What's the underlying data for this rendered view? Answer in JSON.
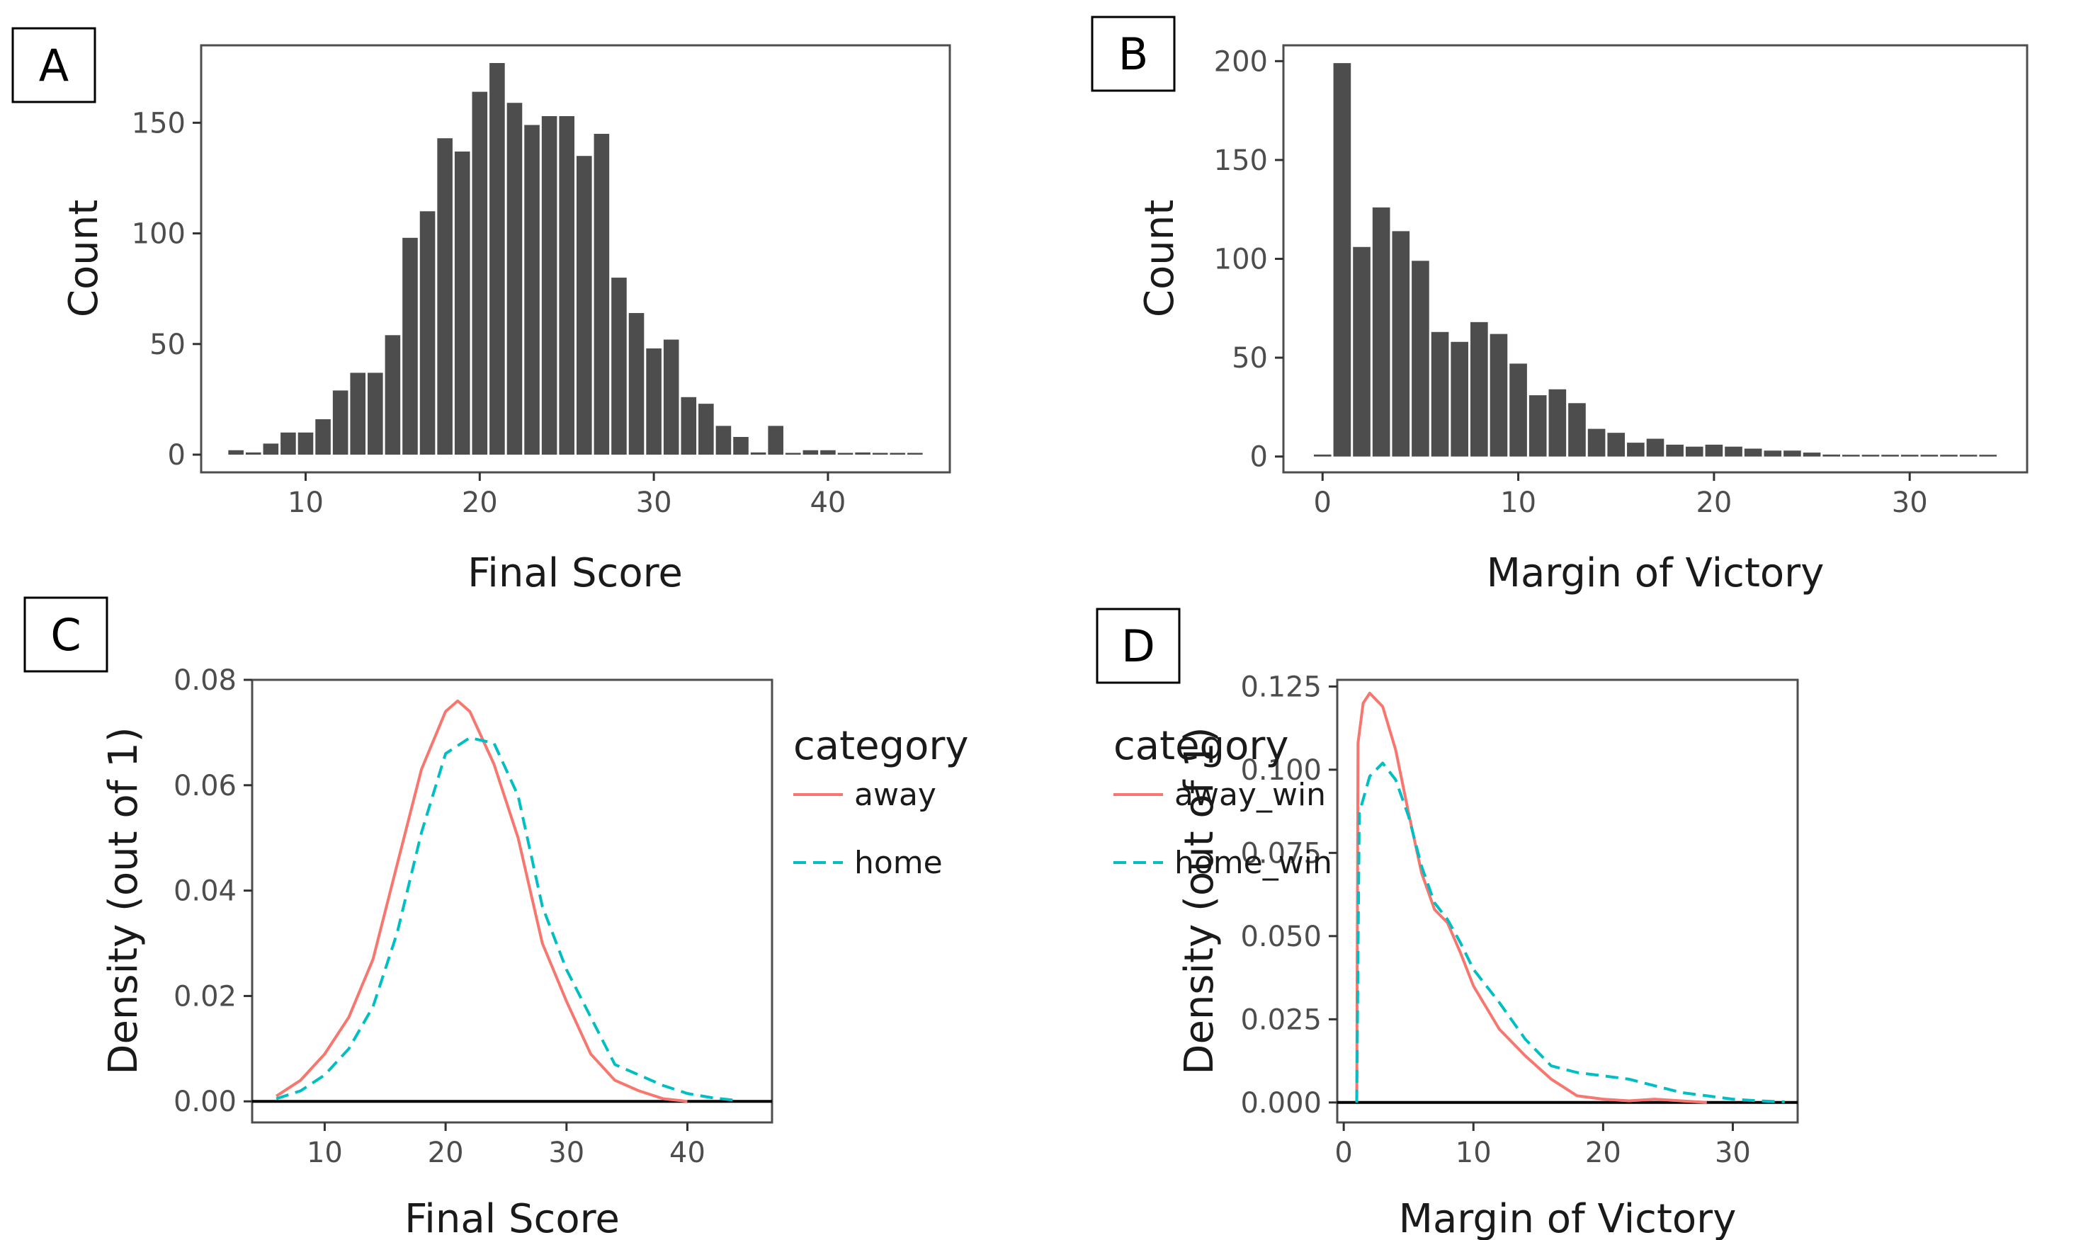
{
  "panels": [
    {
      "letter": "A"
    },
    {
      "letter": "B"
    },
    {
      "letter": "C"
    },
    {
      "letter": "D"
    }
  ],
  "colors": {
    "bar": "#4d4d4d",
    "away": "#f8766d",
    "home": "#00bfc4",
    "zero_line": "#000000"
  },
  "chart_data": [
    {
      "type": "bar",
      "panel": "A",
      "xlabel": "Final Score",
      "ylabel": "Count",
      "xlim": [
        4,
        47
      ],
      "ylim": [
        -8,
        185
      ],
      "xticks": [
        10,
        20,
        30,
        40
      ],
      "yticks": [
        0,
        50,
        100,
        150
      ],
      "x": [
        6,
        7,
        8,
        9,
        10,
        11,
        12,
        13,
        14,
        15,
        16,
        17,
        18,
        19,
        20,
        21,
        22,
        23,
        24,
        25,
        26,
        27,
        28,
        29,
        30,
        31,
        32,
        33,
        34,
        35,
        36,
        37,
        38,
        39,
        40,
        41,
        42,
        43,
        44,
        45
      ],
      "values": [
        2,
        1,
        5,
        10,
        10,
        16,
        29,
        37,
        37,
        54,
        98,
        110,
        143,
        137,
        164,
        177,
        159,
        149,
        153,
        153,
        135,
        145,
        80,
        64,
        48,
        52,
        26,
        23,
        13,
        8,
        1,
        13,
        0,
        2,
        2,
        0,
        1,
        0,
        0,
        0
      ]
    },
    {
      "type": "bar",
      "panel": "B",
      "xlabel": "Margin of Victory",
      "ylabel": "Count",
      "xlim": [
        -2,
        36
      ],
      "ylim": [
        -8,
        208
      ],
      "xticks": [
        0,
        10,
        20,
        30
      ],
      "yticks": [
        0,
        50,
        100,
        150,
        200
      ],
      "x": [
        0,
        1,
        2,
        3,
        4,
        5,
        6,
        7,
        8,
        9,
        10,
        11,
        12,
        13,
        14,
        15,
        16,
        17,
        18,
        19,
        20,
        21,
        22,
        23,
        24,
        25,
        26,
        27,
        28,
        29,
        30,
        31,
        32,
        33,
        34
      ],
      "values": [
        1,
        199,
        106,
        126,
        114,
        99,
        63,
        58,
        68,
        62,
        47,
        31,
        34,
        27,
        14,
        12,
        7,
        9,
        6,
        5,
        6,
        5,
        4,
        3,
        3,
        2,
        1,
        0,
        0,
        0,
        0,
        0,
        0,
        0,
        0
      ]
    },
    {
      "type": "line",
      "panel": "C",
      "xlabel": "Final Score",
      "ylabel": "Density (out of 1)",
      "xlim": [
        4,
        47
      ],
      "ylim": [
        -0.004,
        0.08
      ],
      "xticks": [
        10,
        20,
        30,
        40
      ],
      "yticks": [
        0,
        0.02,
        0.04,
        0.06,
        0.08
      ],
      "ytick_labels": [
        "0.00",
        "0.02",
        "0.04",
        "0.06",
        "0.08"
      ],
      "legend_title": "category",
      "legend_position": "right",
      "series": [
        {
          "name": "away",
          "style": "solid",
          "x": [
            6,
            8,
            10,
            12,
            14,
            16,
            18,
            20,
            21,
            22,
            24,
            26,
            28,
            30,
            32,
            34,
            36,
            38,
            40
          ],
          "y": [
            0.001,
            0.004,
            0.009,
            0.016,
            0.027,
            0.045,
            0.063,
            0.074,
            0.076,
            0.074,
            0.064,
            0.05,
            0.03,
            0.019,
            0.009,
            0.004,
            0.002,
            0.0005,
            0.0
          ]
        },
        {
          "name": "home",
          "style": "dashed",
          "x": [
            6,
            8,
            10,
            12,
            14,
            16,
            18,
            20,
            22,
            24,
            26,
            28,
            30,
            32,
            34,
            36,
            38,
            40,
            42,
            44
          ],
          "y": [
            0.0005,
            0.002,
            0.005,
            0.01,
            0.018,
            0.032,
            0.051,
            0.066,
            0.069,
            0.068,
            0.058,
            0.037,
            0.025,
            0.016,
            0.007,
            0.005,
            0.003,
            0.0015,
            0.0007,
            0.0002
          ]
        }
      ]
    },
    {
      "type": "line",
      "panel": "D",
      "xlabel": "Margin of Victory",
      "ylabel": "Density (out of 1)",
      "xlim": [
        -0.5,
        35
      ],
      "ylim": [
        -0.006,
        0.127
      ],
      "xticks": [
        0,
        10,
        20,
        30
      ],
      "yticks": [
        0,
        0.025,
        0.05,
        0.075,
        0.1,
        0.125
      ],
      "ytick_labels": [
        "0.000",
        "0.025",
        "0.050",
        "0.075",
        "0.100",
        "0.125"
      ],
      "legend_title": "category",
      "legend_position": "right",
      "series": [
        {
          "name": "away_win",
          "style": "solid",
          "x": [
            1,
            1.1,
            1.5,
            2,
            3,
            4,
            5,
            6,
            7,
            8,
            9,
            10,
            12,
            14,
            16,
            18,
            20,
            22,
            24,
            26,
            28
          ],
          "y": [
            0.0,
            0.108,
            0.12,
            0.123,
            0.119,
            0.106,
            0.087,
            0.069,
            0.058,
            0.054,
            0.045,
            0.035,
            0.022,
            0.014,
            0.007,
            0.002,
            0.001,
            0.0005,
            0.001,
            0.0005,
            0.0
          ]
        },
        {
          "name": "home_win",
          "style": "dashed",
          "x": [
            1,
            1.2,
            2,
            3,
            4,
            5,
            6,
            7,
            8,
            9,
            10,
            12,
            14,
            16,
            18,
            20,
            22,
            24,
            26,
            28,
            30,
            32,
            34
          ],
          "y": [
            0.0,
            0.087,
            0.098,
            0.102,
            0.097,
            0.086,
            0.071,
            0.06,
            0.055,
            0.048,
            0.04,
            0.03,
            0.019,
            0.011,
            0.009,
            0.008,
            0.007,
            0.005,
            0.003,
            0.002,
            0.001,
            0.0005,
            0.0002
          ]
        }
      ]
    }
  ]
}
